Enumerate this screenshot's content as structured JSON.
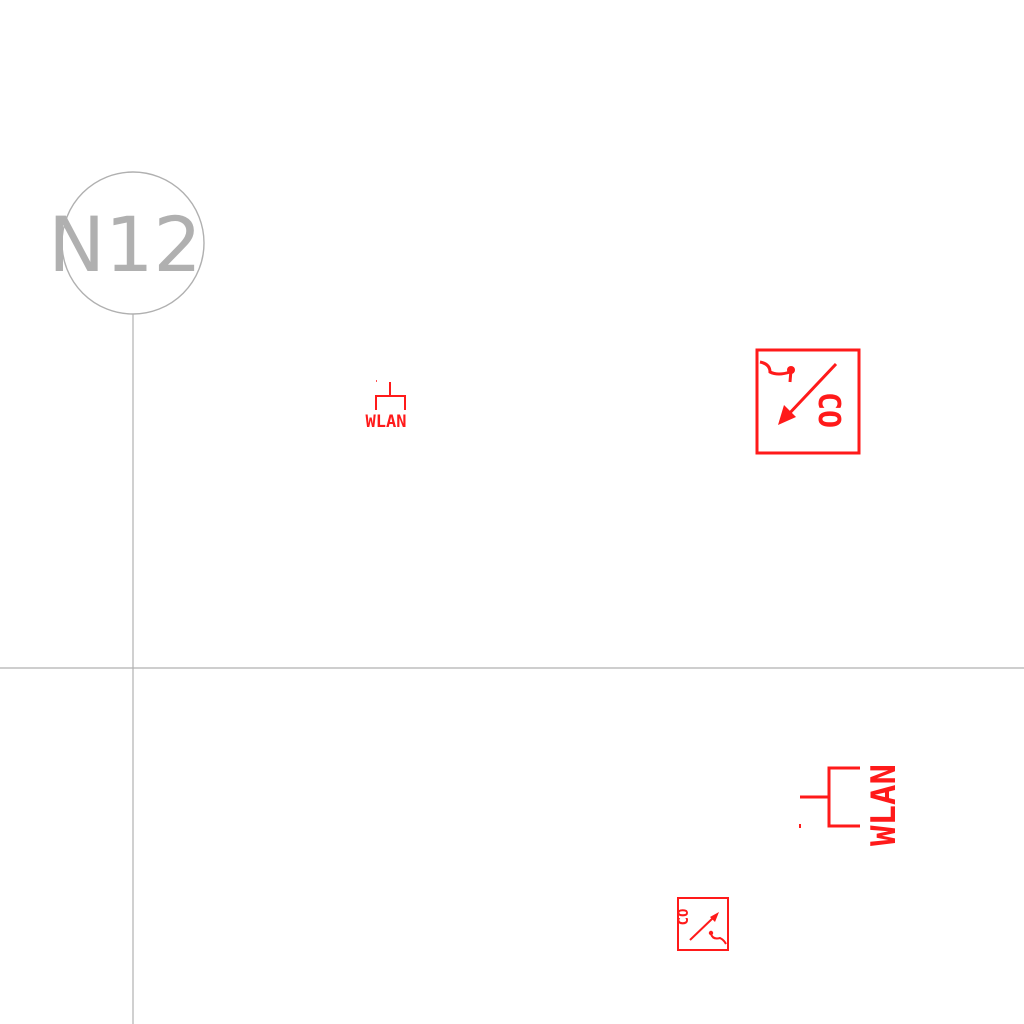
{
  "grid": {
    "axis_label": "N12",
    "line_color": "#b0b0b0"
  },
  "symbol_color": "#ff1a1a",
  "symbols": {
    "wlan_small": {
      "label": "WLAN",
      "icon": "wlan-outlet-icon"
    },
    "wlan_large": {
      "label": "WLAN",
      "icon": "wlan-outlet-icon"
    },
    "co_large": {
      "label": "CO",
      "icon": "co-detector-icon"
    },
    "co_small": {
      "label": "CO",
      "icon": "co-detector-icon"
    }
  }
}
